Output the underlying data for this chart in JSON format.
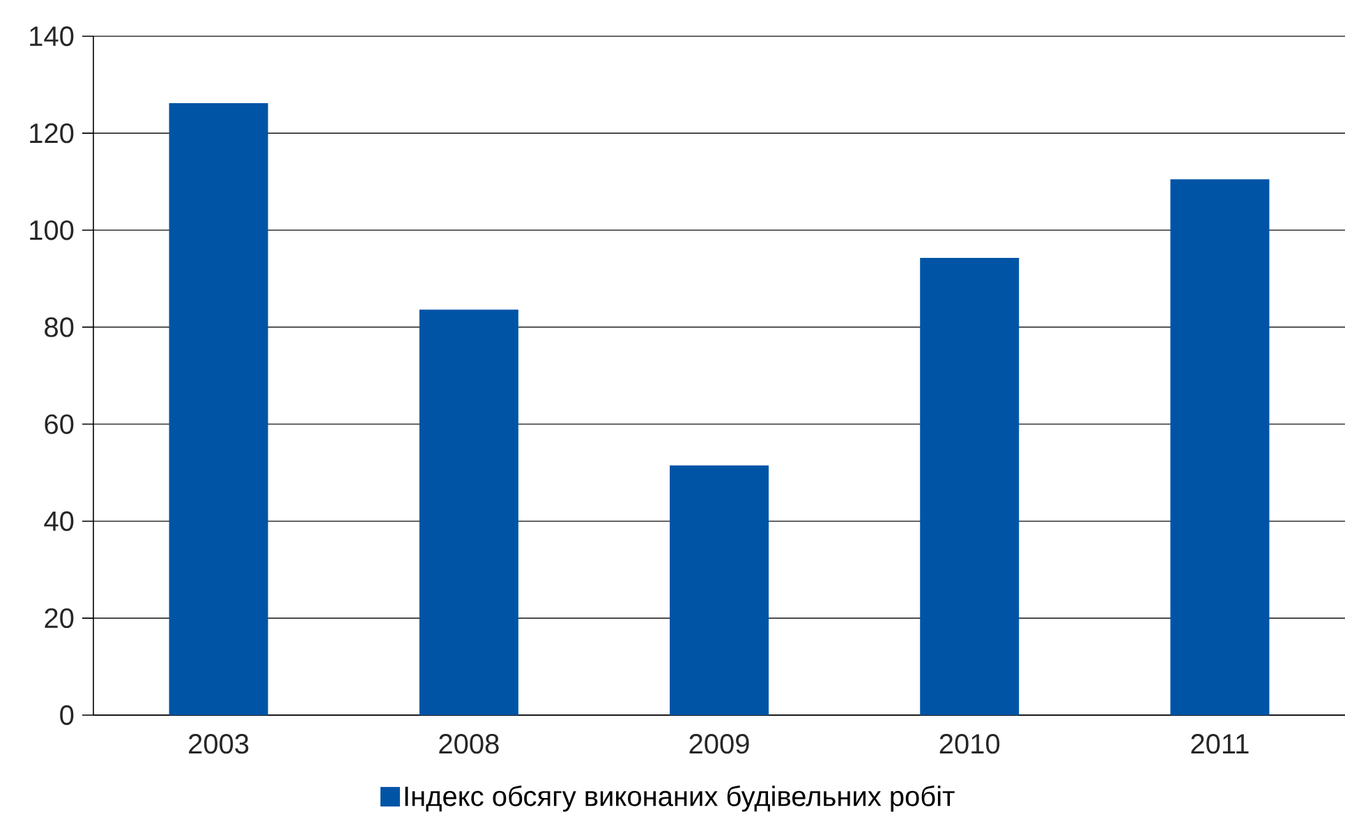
{
  "chart_data": {
    "type": "bar",
    "categories": [
      "2003",
      "2008",
      "2009",
      "2010",
      "2011"
    ],
    "series": [
      {
        "name": "Індекс обсягу виконаних будівельних робіт",
        "color": "#0054a6",
        "values": [
          126.2,
          83.6,
          51.5,
          94.3,
          110.5
        ]
      }
    ],
    "ylim": [
      0,
      140
    ],
    "yticks": [
      0,
      20,
      40,
      60,
      80,
      100,
      120,
      140
    ],
    "grid": "y",
    "legend": "bottom"
  }
}
